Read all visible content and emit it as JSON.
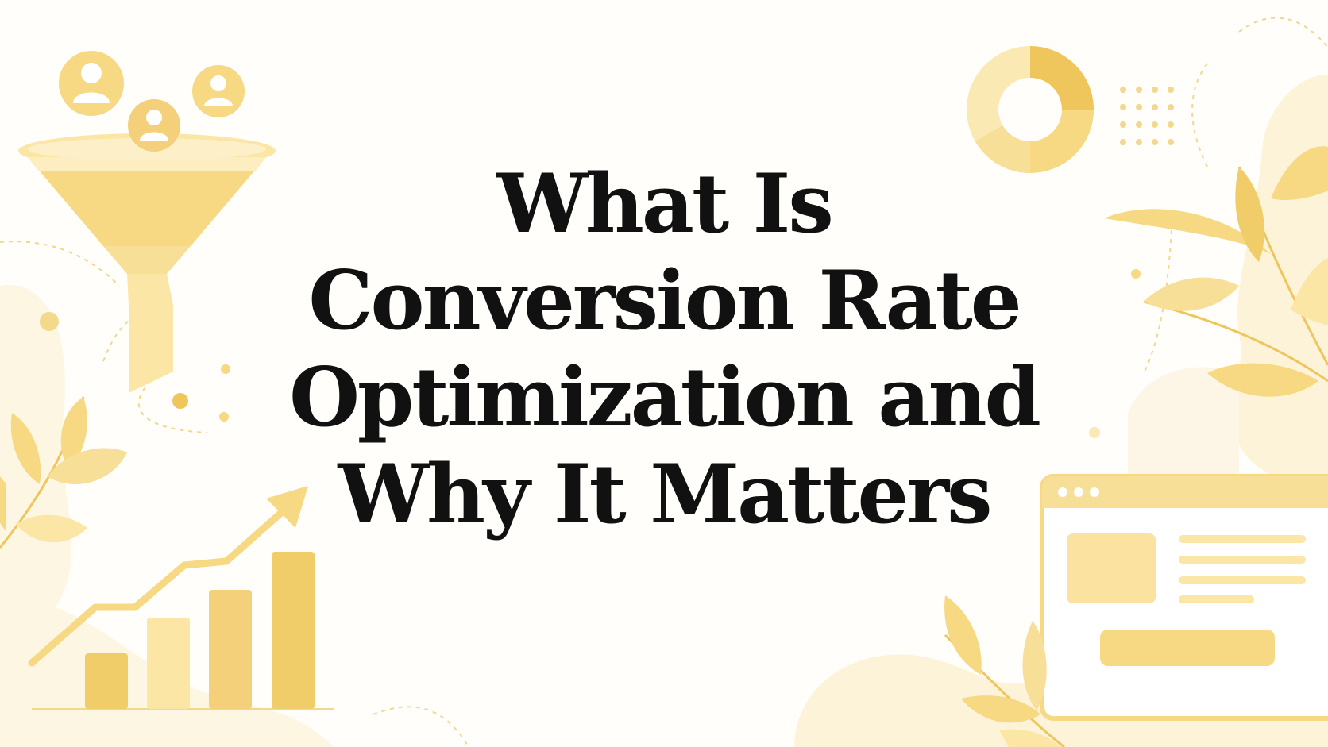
{
  "headline": {
    "line1": "What Is",
    "line2": "Conversion Rate",
    "line3": "Optimization and",
    "line4": "Why It Matters"
  },
  "palette": {
    "background": "#fffefb",
    "yellow_dark": "#eec65c",
    "yellow_mid": "#f6d982",
    "yellow_light": "#fbe9b3",
    "cream": "#fdf5de",
    "text": "#111111"
  },
  "icons": [
    "funnel-icon",
    "user-avatar-icon",
    "bar-chart-icon",
    "trend-arrow-icon",
    "donut-chart-icon",
    "browser-window-icon",
    "leaf-branch-icon",
    "dot-grid-icon"
  ]
}
